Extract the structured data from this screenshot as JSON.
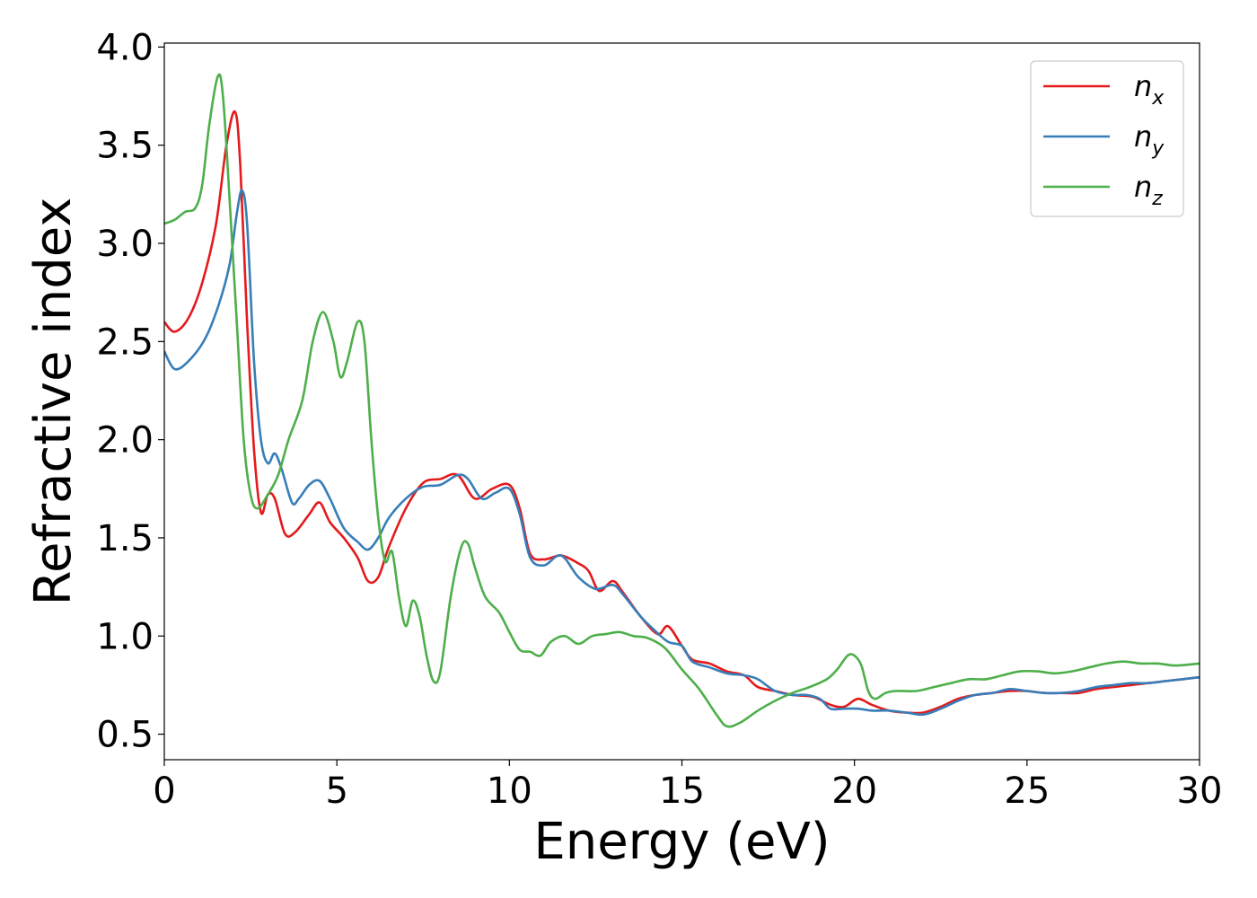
{
  "chart_data": {
    "type": "line",
    "xlabel": "Energy (eV)",
    "ylabel": "Refractive index",
    "xlim": [
      0,
      30
    ],
    "ylim": [
      0.37,
      4.02
    ],
    "xticks": [
      0,
      5,
      10,
      15,
      20,
      25,
      30
    ],
    "xtick_labels": [
      "0",
      "5",
      "10",
      "15",
      "20",
      "25",
      "30"
    ],
    "yticks": [
      0.5,
      1.0,
      1.5,
      2.0,
      2.5,
      3.0,
      3.5,
      4.0
    ],
    "ytick_labels": [
      "0.5",
      "1.0",
      "1.5",
      "2.0",
      "2.5",
      "3.0",
      "3.5",
      "4.0"
    ],
    "grid": false,
    "legend_position": "top-right",
    "series": [
      {
        "name": "n",
        "subscript": "x",
        "color": "#e41a1c",
        "points": [
          [
            0,
            2.6
          ],
          [
            0.3,
            2.55
          ],
          [
            0.7,
            2.62
          ],
          [
            1.1,
            2.8
          ],
          [
            1.5,
            3.1
          ],
          [
            1.8,
            3.5
          ],
          [
            2.05,
            3.67
          ],
          [
            2.2,
            3.4
          ],
          [
            2.4,
            2.6
          ],
          [
            2.6,
            1.95
          ],
          [
            2.8,
            1.63
          ],
          [
            3.0,
            1.72
          ],
          [
            3.2,
            1.7
          ],
          [
            3.5,
            1.52
          ],
          [
            3.8,
            1.53
          ],
          [
            4.2,
            1.62
          ],
          [
            4.5,
            1.68
          ],
          [
            4.8,
            1.58
          ],
          [
            5.2,
            1.5
          ],
          [
            5.6,
            1.4
          ],
          [
            5.9,
            1.28
          ],
          [
            6.2,
            1.3
          ],
          [
            6.5,
            1.45
          ],
          [
            7.0,
            1.65
          ],
          [
            7.5,
            1.78
          ],
          [
            8.0,
            1.8
          ],
          [
            8.5,
            1.82
          ],
          [
            9.0,
            1.7
          ],
          [
            9.5,
            1.75
          ],
          [
            10.0,
            1.77
          ],
          [
            10.3,
            1.65
          ],
          [
            10.6,
            1.42
          ],
          [
            11.0,
            1.39
          ],
          [
            11.5,
            1.41
          ],
          [
            12.0,
            1.37
          ],
          [
            12.3,
            1.33
          ],
          [
            12.6,
            1.23
          ],
          [
            13.0,
            1.28
          ],
          [
            13.3,
            1.22
          ],
          [
            13.8,
            1.1
          ],
          [
            14.3,
            1.01
          ],
          [
            14.6,
            1.05
          ],
          [
            15.0,
            0.95
          ],
          [
            15.3,
            0.88
          ],
          [
            15.8,
            0.86
          ],
          [
            16.3,
            0.82
          ],
          [
            16.8,
            0.8
          ],
          [
            17.2,
            0.74
          ],
          [
            17.7,
            0.72
          ],
          [
            18.2,
            0.7
          ],
          [
            18.8,
            0.69
          ],
          [
            19.3,
            0.65
          ],
          [
            19.7,
            0.64
          ],
          [
            20.1,
            0.68
          ],
          [
            20.5,
            0.65
          ],
          [
            21.0,
            0.62
          ],
          [
            21.5,
            0.61
          ],
          [
            22.0,
            0.61
          ],
          [
            22.5,
            0.64
          ],
          [
            23.0,
            0.68
          ],
          [
            23.5,
            0.7
          ],
          [
            24.0,
            0.71
          ],
          [
            24.5,
            0.72
          ],
          [
            25.0,
            0.72
          ],
          [
            25.5,
            0.71
          ],
          [
            26.0,
            0.71
          ],
          [
            26.5,
            0.71
          ],
          [
            27.0,
            0.73
          ],
          [
            27.5,
            0.74
          ],
          [
            28.0,
            0.75
          ],
          [
            28.5,
            0.76
          ],
          [
            29.0,
            0.77
          ],
          [
            29.5,
            0.78
          ],
          [
            30.0,
            0.79
          ]
        ]
      },
      {
        "name": "n",
        "subscript": "y",
        "color": "#377eb8",
        "points": [
          [
            0,
            2.45
          ],
          [
            0.3,
            2.36
          ],
          [
            0.7,
            2.4
          ],
          [
            1.2,
            2.52
          ],
          [
            1.6,
            2.7
          ],
          [
            1.9,
            2.9
          ],
          [
            2.1,
            3.15
          ],
          [
            2.25,
            3.27
          ],
          [
            2.4,
            3.1
          ],
          [
            2.6,
            2.4
          ],
          [
            2.8,
            2.0
          ],
          [
            3.0,
            1.88
          ],
          [
            3.2,
            1.93
          ],
          [
            3.4,
            1.85
          ],
          [
            3.7,
            1.68
          ],
          [
            3.9,
            1.7
          ],
          [
            4.2,
            1.77
          ],
          [
            4.5,
            1.79
          ],
          [
            4.8,
            1.7
          ],
          [
            5.2,
            1.55
          ],
          [
            5.6,
            1.48
          ],
          [
            5.9,
            1.44
          ],
          [
            6.2,
            1.5
          ],
          [
            6.5,
            1.6
          ],
          [
            7.0,
            1.7
          ],
          [
            7.5,
            1.76
          ],
          [
            8.0,
            1.77
          ],
          [
            8.5,
            1.82
          ],
          [
            8.8,
            1.8
          ],
          [
            9.2,
            1.7
          ],
          [
            9.6,
            1.73
          ],
          [
            10.0,
            1.75
          ],
          [
            10.3,
            1.62
          ],
          [
            10.6,
            1.4
          ],
          [
            11.0,
            1.36
          ],
          [
            11.5,
            1.41
          ],
          [
            12.0,
            1.3
          ],
          [
            12.5,
            1.24
          ],
          [
            13.0,
            1.26
          ],
          [
            13.3,
            1.21
          ],
          [
            13.8,
            1.1
          ],
          [
            14.2,
            1.03
          ],
          [
            14.6,
            0.97
          ],
          [
            15.0,
            0.95
          ],
          [
            15.3,
            0.87
          ],
          [
            15.8,
            0.84
          ],
          [
            16.3,
            0.81
          ],
          [
            16.8,
            0.8
          ],
          [
            17.2,
            0.78
          ],
          [
            17.7,
            0.72
          ],
          [
            18.2,
            0.7
          ],
          [
            18.6,
            0.7
          ],
          [
            19.0,
            0.68
          ],
          [
            19.3,
            0.63
          ],
          [
            19.7,
            0.63
          ],
          [
            20.1,
            0.63
          ],
          [
            20.5,
            0.62
          ],
          [
            21.0,
            0.62
          ],
          [
            21.5,
            0.61
          ],
          [
            22.0,
            0.6
          ],
          [
            22.5,
            0.63
          ],
          [
            23.0,
            0.67
          ],
          [
            23.5,
            0.7
          ],
          [
            24.0,
            0.71
          ],
          [
            24.5,
            0.73
          ],
          [
            25.0,
            0.72
          ],
          [
            25.5,
            0.71
          ],
          [
            26.0,
            0.71
          ],
          [
            26.5,
            0.72
          ],
          [
            27.0,
            0.74
          ],
          [
            27.5,
            0.75
          ],
          [
            28.0,
            0.76
          ],
          [
            28.5,
            0.76
          ],
          [
            29.0,
            0.77
          ],
          [
            29.5,
            0.78
          ],
          [
            30.0,
            0.79
          ]
        ]
      },
      {
        "name": "n",
        "subscript": "z",
        "color": "#4daf4a",
        "points": [
          [
            0,
            3.1
          ],
          [
            0.3,
            3.12
          ],
          [
            0.6,
            3.16
          ],
          [
            0.9,
            3.18
          ],
          [
            1.1,
            3.3
          ],
          [
            1.3,
            3.6
          ],
          [
            1.55,
            3.85
          ],
          [
            1.7,
            3.75
          ],
          [
            1.9,
            3.2
          ],
          [
            2.1,
            2.6
          ],
          [
            2.3,
            2.0
          ],
          [
            2.5,
            1.72
          ],
          [
            2.7,
            1.65
          ],
          [
            3.0,
            1.72
          ],
          [
            3.3,
            1.82
          ],
          [
            3.6,
            2.0
          ],
          [
            4.0,
            2.2
          ],
          [
            4.3,
            2.5
          ],
          [
            4.6,
            2.65
          ],
          [
            4.9,
            2.5
          ],
          [
            5.1,
            2.32
          ],
          [
            5.3,
            2.4
          ],
          [
            5.6,
            2.6
          ],
          [
            5.8,
            2.5
          ],
          [
            6.0,
            2.0
          ],
          [
            6.2,
            1.6
          ],
          [
            6.4,
            1.38
          ],
          [
            6.6,
            1.43
          ],
          [
            6.8,
            1.2
          ],
          [
            7.0,
            1.05
          ],
          [
            7.2,
            1.18
          ],
          [
            7.4,
            1.1
          ],
          [
            7.6,
            0.9
          ],
          [
            7.8,
            0.77
          ],
          [
            8.0,
            0.82
          ],
          [
            8.3,
            1.2
          ],
          [
            8.6,
            1.45
          ],
          [
            8.8,
            1.47
          ],
          [
            9.0,
            1.35
          ],
          [
            9.3,
            1.2
          ],
          [
            9.7,
            1.12
          ],
          [
            10.0,
            1.02
          ],
          [
            10.3,
            0.93
          ],
          [
            10.6,
            0.92
          ],
          [
            10.9,
            0.9
          ],
          [
            11.2,
            0.97
          ],
          [
            11.6,
            1.0
          ],
          [
            12.0,
            0.96
          ],
          [
            12.4,
            1.0
          ],
          [
            12.8,
            1.01
          ],
          [
            13.2,
            1.02
          ],
          [
            13.6,
            1.0
          ],
          [
            14.0,
            0.99
          ],
          [
            14.5,
            0.94
          ],
          [
            15.0,
            0.83
          ],
          [
            15.5,
            0.73
          ],
          [
            16.0,
            0.6
          ],
          [
            16.3,
            0.54
          ],
          [
            16.7,
            0.56
          ],
          [
            17.2,
            0.62
          ],
          [
            17.7,
            0.67
          ],
          [
            18.2,
            0.71
          ],
          [
            18.7,
            0.74
          ],
          [
            19.2,
            0.78
          ],
          [
            19.5,
            0.83
          ],
          [
            19.8,
            0.9
          ],
          [
            20.0,
            0.9
          ],
          [
            20.2,
            0.85
          ],
          [
            20.4,
            0.72
          ],
          [
            20.6,
            0.68
          ],
          [
            20.9,
            0.71
          ],
          [
            21.2,
            0.72
          ],
          [
            21.8,
            0.72
          ],
          [
            22.3,
            0.74
          ],
          [
            22.8,
            0.76
          ],
          [
            23.3,
            0.78
          ],
          [
            23.8,
            0.78
          ],
          [
            24.3,
            0.8
          ],
          [
            24.8,
            0.82
          ],
          [
            25.3,
            0.82
          ],
          [
            25.8,
            0.81
          ],
          [
            26.3,
            0.82
          ],
          [
            26.8,
            0.84
          ],
          [
            27.3,
            0.86
          ],
          [
            27.8,
            0.87
          ],
          [
            28.3,
            0.86
          ],
          [
            28.8,
            0.86
          ],
          [
            29.3,
            0.85
          ],
          [
            30.0,
            0.86
          ]
        ]
      }
    ]
  }
}
